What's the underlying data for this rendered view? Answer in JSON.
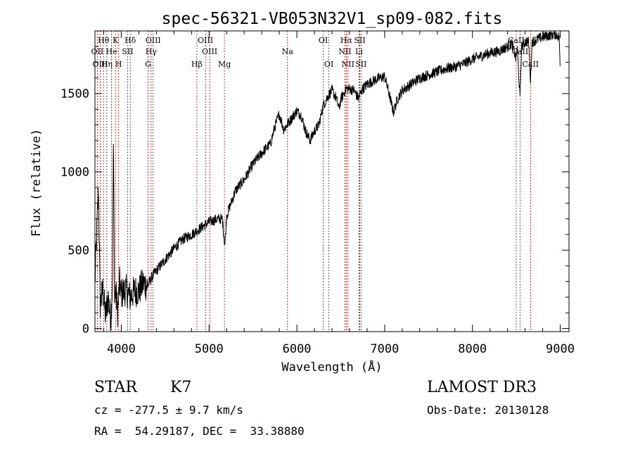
{
  "chart_data": {
    "type": "line",
    "title": "spec-56321-VB053N32V1_sp09-082.fits",
    "xlabel": "Wavelength (Å)",
    "ylabel": "Flux (relative)",
    "xlim": [
      3700,
      9100
    ],
    "ylim": [
      -20,
      1900
    ],
    "xticks": [
      4000,
      5000,
      6000,
      7000,
      8000,
      9000
    ],
    "yticks": [
      0,
      500,
      1000,
      1500
    ],
    "spectrum_anchors": [
      [
        3700,
        300
      ],
      [
        3740,
        900
      ],
      [
        3760,
        150
      ],
      [
        3790,
        250
      ],
      [
        3820,
        80
      ],
      [
        3850,
        200
      ],
      [
        3880,
        50
      ],
      [
        3900,
        300
      ],
      [
        3910,
        1170
      ],
      [
        3925,
        150
      ],
      [
        3935,
        250
      ],
      [
        3960,
        100
      ],
      [
        3980,
        300
      ],
      [
        4000,
        220
      ],
      [
        4050,
        250
      ],
      [
        4100,
        200
      ],
      [
        4150,
        240
      ],
      [
        4200,
        240
      ],
      [
        4250,
        290
      ],
      [
        4300,
        270
      ],
      [
        4350,
        330
      ],
      [
        4400,
        370
      ],
      [
        4500,
        440
      ],
      [
        4600,
        510
      ],
      [
        4700,
        570
      ],
      [
        4800,
        600
      ],
      [
        4900,
        640
      ],
      [
        5000,
        680
      ],
      [
        5100,
        700
      ],
      [
        5150,
        700
      ],
      [
        5180,
        530
      ],
      [
        5200,
        720
      ],
      [
        5300,
        880
      ],
      [
        5400,
        950
      ],
      [
        5500,
        1050
      ],
      [
        5600,
        1120
      ],
      [
        5700,
        1180
      ],
      [
        5750,
        1290
      ],
      [
        5800,
        1370
      ],
      [
        5850,
        1270
      ],
      [
        5900,
        1310
      ],
      [
        5950,
        1350
      ],
      [
        6000,
        1390
      ],
      [
        6050,
        1360
      ],
      [
        6100,
        1260
      ],
      [
        6150,
        1200
      ],
      [
        6200,
        1260
      ],
      [
        6250,
        1300
      ],
      [
        6300,
        1420
      ],
      [
        6350,
        1480
      ],
      [
        6400,
        1520
      ],
      [
        6450,
        1470
      ],
      [
        6480,
        1400
      ],
      [
        6500,
        1460
      ],
      [
        6560,
        1530
      ],
      [
        6600,
        1530
      ],
      [
        6650,
        1520
      ],
      [
        6700,
        1470
      ],
      [
        6750,
        1530
      ],
      [
        6800,
        1560
      ],
      [
        6900,
        1590
      ],
      [
        7000,
        1610
      ],
      [
        7050,
        1500
      ],
      [
        7100,
        1380
      ],
      [
        7150,
        1470
      ],
      [
        7200,
        1520
      ],
      [
        7300,
        1560
      ],
      [
        7400,
        1600
      ],
      [
        7500,
        1620
      ],
      [
        7600,
        1640
      ],
      [
        7700,
        1660
      ],
      [
        7800,
        1670
      ],
      [
        7900,
        1690
      ],
      [
        8000,
        1720
      ],
      [
        8100,
        1740
      ],
      [
        8200,
        1760
      ],
      [
        8300,
        1770
      ],
      [
        8400,
        1800
      ],
      [
        8450,
        1820
      ],
      [
        8498,
        1720
      ],
      [
        8510,
        1800
      ],
      [
        8542,
        1470
      ],
      [
        8560,
        1800
      ],
      [
        8600,
        1830
      ],
      [
        8640,
        1830
      ],
      [
        8662,
        1580
      ],
      [
        8680,
        1830
      ],
      [
        8750,
        1850
      ],
      [
        8850,
        1870
      ],
      [
        8950,
        1880
      ],
      [
        8990,
        1860
      ],
      [
        9000,
        1600
      ]
    ],
    "noise_amplitude": 35,
    "spectral_lines": [
      {
        "label": "Hθ",
        "wl": 3798,
        "row": 0
      },
      {
        "label": "K",
        "wl": 3934,
        "row": 0
      },
      {
        "label": "Hδ",
        "wl": 4102,
        "row": 0
      },
      {
        "label": "OIII",
        "wl": 4363,
        "row": 0
      },
      {
        "label": "OIII",
        "wl": 4959,
        "row": 0
      },
      {
        "label": "OI",
        "wl": 6300,
        "row": 0
      },
      {
        "label": "Hα",
        "wl": 6563,
        "row": 0
      },
      {
        "label": "SII",
        "wl": 6717,
        "row": 0
      },
      {
        "label": "CaII",
        "wl": 8498,
        "row": 0
      },
      {
        "label": "OII",
        "wl": 3727,
        "row": 1
      },
      {
        "label": "He",
        "wl": 3889,
        "row": 1
      },
      {
        "label": "SII",
        "wl": 4072,
        "row": 1
      },
      {
        "label": "Hγ",
        "wl": 4340,
        "row": 1
      },
      {
        "label": "OIII",
        "wl": 5007,
        "row": 1
      },
      {
        "label": "Na",
        "wl": 5893,
        "row": 1
      },
      {
        "label": "NII",
        "wl": 6548,
        "row": 1
      },
      {
        "label": "Li",
        "wl": 6708,
        "row": 1
      },
      {
        "label": "CaII",
        "wl": 8542,
        "row": 1
      },
      {
        "label": "OIII",
        "wl": 3760,
        "row": 2
      },
      {
        "label": "Hη",
        "wl": 3835,
        "row": 2
      },
      {
        "label": "H",
        "wl": 3970,
        "row": 2
      },
      {
        "label": "G",
        "wl": 4305,
        "row": 2
      },
      {
        "label": "Hβ",
        "wl": 4861,
        "row": 2
      },
      {
        "label": "Mg",
        "wl": 5175,
        "row": 2
      },
      {
        "label": "OI",
        "wl": 6364,
        "row": 2
      },
      {
        "label": "NII",
        "wl": 6583,
        "row": 2
      },
      {
        "label": "SII",
        "wl": 6731,
        "row": 2
      },
      {
        "label": "CaII",
        "wl": 8662,
        "row": 2
      }
    ]
  },
  "info": {
    "object_class": "STAR",
    "subclass": "K7",
    "survey": "LAMOST DR3",
    "cz": "cz = -277.5 ± 9.7 km/s",
    "obs_date": "Obs-Date: 20130128",
    "radec": "RA =  54.29187, DEC =  33.38880"
  },
  "colors": {
    "spectrum": "#000000",
    "line_markers": "#b00000",
    "axes": "#000000"
  }
}
